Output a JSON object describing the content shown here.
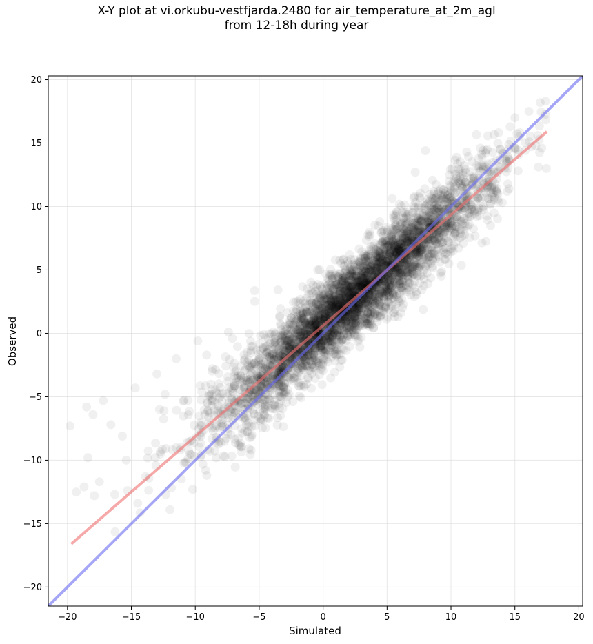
{
  "chart_data": {
    "type": "scatter",
    "title": [
      "X-Y plot at vi.orkubu-vestfjarda.2480 for air_temperature_at_2m_agl",
      "from 12-18h during year"
    ],
    "xlabel": "Simulated",
    "ylabel": "Observed",
    "xlim": [
      -21.5,
      20.3
    ],
    "ylim": [
      -21.5,
      20.3
    ],
    "xticks": [
      -20,
      -15,
      -10,
      -5,
      0,
      5,
      10,
      15,
      20
    ],
    "yticks": [
      -20,
      -15,
      -10,
      -5,
      0,
      5,
      10,
      15,
      20
    ],
    "xtick_labels": [
      "−20",
      "−15",
      "−10",
      "−5",
      "0",
      "5",
      "10",
      "15",
      "20"
    ],
    "ytick_labels": [
      "−20",
      "−15",
      "−10",
      "−5",
      "0",
      "5",
      "10",
      "15",
      "20"
    ],
    "grid": true,
    "point_color": "#000000",
    "point_alpha": 0.06,
    "points_approx_count": 4400,
    "distribution": {
      "x_center": 2.5,
      "x_sd": 5.2,
      "x_range": [
        -20,
        17.5
      ],
      "y_relation_slope": 0.87,
      "y_relation_intercept": 0.7,
      "y_scatter_sd": 1.6
    },
    "outlier_points": [
      [
        -19.8,
        -7.3
      ],
      [
        -18.5,
        -5.8
      ],
      [
        -18.0,
        -6.4
      ],
      [
        -17.2,
        -5.3
      ],
      [
        -18.4,
        -9.8
      ],
      [
        -18.7,
        -12.1
      ],
      [
        -17.5,
        -11.7
      ],
      [
        -17.9,
        -12.8
      ],
      [
        -16.6,
        -7.2
      ],
      [
        -15.7,
        -8.1
      ],
      [
        -14.7,
        -4.3
      ],
      [
        -15.3,
        -12.4
      ],
      [
        -14.5,
        -13.4
      ],
      [
        -15.4,
        -10.0
      ],
      [
        -16.3,
        -12.7
      ],
      [
        -13.0,
        -3.2
      ],
      [
        -12.8,
        -6.0
      ],
      [
        -11.5,
        -2.0
      ],
      [
        -7.4,
        0.1
      ],
      [
        -9.8,
        -0.6
      ],
      [
        -9.1,
        -11.2
      ],
      [
        -10.2,
        -12.3
      ],
      [
        -12.3,
        -12.7
      ],
      [
        -9.2,
        -10.8
      ],
      [
        -13.9,
        -11.3
      ]
    ],
    "high_points": [
      [
        17.4,
        18.3
      ],
      [
        17.1,
        14.6
      ],
      [
        16.8,
        15.6
      ],
      [
        16.1,
        17.5
      ],
      [
        15.0,
        17.0
      ],
      [
        8.0,
        14.4
      ],
      [
        12.3,
        14.6
      ],
      [
        11.3,
        10.8
      ],
      [
        14.3,
        13.6
      ],
      [
        10.4,
        7.2
      ],
      [
        7.2,
        12.7
      ],
      [
        13.1,
        8.5
      ],
      [
        12.8,
        12.9
      ],
      [
        15.3,
        14.1
      ]
    ],
    "series": [
      {
        "type": "line",
        "color": "#ef6f6f",
        "alpha": 0.6,
        "width": 4,
        "x": [
          -19.7,
          17.5
        ],
        "y": [
          -16.6,
          15.9
        ]
      },
      {
        "type": "line",
        "color": "#6a6af0",
        "alpha": 0.6,
        "width": 4,
        "x": [
          -21.5,
          20.3
        ],
        "y": [
          -21.5,
          20.3
        ]
      }
    ]
  }
}
